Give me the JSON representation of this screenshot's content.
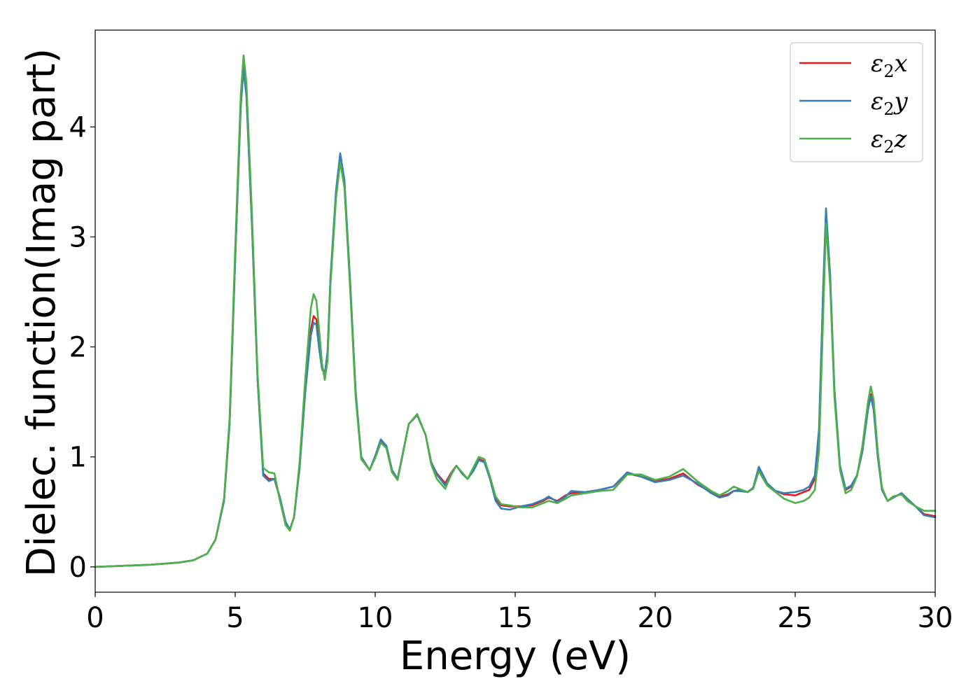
{
  "chart_data": {
    "type": "line",
    "xlabel": "Energy (eV)",
    "ylabel": "Dielec. function(Imag part)",
    "xlim": [
      0,
      30
    ],
    "ylim": [
      -0.23,
      4.88
    ],
    "xticks": [
      0,
      5,
      10,
      15,
      20,
      25,
      30
    ],
    "xtick_labels": [
      "0",
      "5",
      "10",
      "15",
      "20",
      "25",
      "30"
    ],
    "yticks": [
      0,
      1,
      2,
      3,
      4
    ],
    "ytick_labels": [
      "0",
      "1",
      "2",
      "3",
      "4"
    ],
    "grid": false,
    "legend_position": "top-right",
    "series": [
      {
        "name": "ε₂x",
        "legend": {
          "base": "ε",
          "sub": "2",
          "var": "x"
        },
        "color": "#e41a1c",
        "x": [
          0,
          1,
          2,
          3,
          3.5,
          4,
          4.3,
          4.6,
          4.8,
          5.0,
          5.2,
          5.3,
          5.4,
          5.6,
          5.8,
          6.0,
          6.2,
          6.4,
          6.6,
          6.8,
          6.95,
          7.1,
          7.3,
          7.5,
          7.7,
          7.8,
          7.9,
          8.0,
          8.1,
          8.2,
          8.3,
          8.4,
          8.6,
          8.75,
          8.9,
          9.1,
          9.3,
          9.5,
          9.8,
          10.0,
          10.2,
          10.4,
          10.6,
          10.8,
          11.0,
          11.2,
          11.5,
          11.8,
          12.0,
          12.2,
          12.5,
          12.7,
          12.9,
          13.1,
          13.3,
          13.5,
          13.7,
          13.9,
          14.1,
          14.3,
          14.5,
          14.8,
          15.2,
          15.6,
          16.0,
          16.2,
          16.5,
          16.8,
          17.0,
          17.5,
          18.0,
          18.5,
          19.0,
          19.5,
          20.0,
          20.5,
          21.0,
          21.5,
          22.0,
          22.3,
          22.6,
          22.8,
          23.0,
          23.3,
          23.5,
          23.7,
          24.0,
          24.3,
          24.6,
          25.0,
          25.3,
          25.5,
          25.7,
          25.85,
          26.0,
          26.1,
          26.25,
          26.4,
          26.6,
          26.8,
          27.0,
          27.2,
          27.4,
          27.6,
          27.7,
          27.8,
          27.95,
          28.1,
          28.3,
          28.5,
          28.8,
          29.0,
          29.3,
          29.6,
          30.0
        ],
        "y": [
          0.0,
          0.01,
          0.02,
          0.04,
          0.06,
          0.12,
          0.25,
          0.6,
          1.3,
          2.8,
          4.2,
          4.55,
          4.3,
          3.1,
          1.7,
          0.85,
          0.8,
          0.8,
          0.62,
          0.4,
          0.34,
          0.45,
          0.9,
          1.6,
          2.15,
          2.28,
          2.25,
          2.0,
          1.82,
          1.75,
          1.95,
          2.6,
          3.4,
          3.73,
          3.5,
          2.6,
          1.6,
          1.0,
          0.88,
          1.0,
          1.15,
          1.1,
          0.88,
          0.8,
          1.05,
          1.3,
          1.38,
          1.2,
          0.95,
          0.85,
          0.76,
          0.85,
          0.92,
          0.85,
          0.8,
          0.88,
          0.98,
          0.96,
          0.8,
          0.62,
          0.56,
          0.55,
          0.55,
          0.56,
          0.6,
          0.63,
          0.6,
          0.65,
          0.67,
          0.68,
          0.7,
          0.73,
          0.85,
          0.82,
          0.78,
          0.8,
          0.85,
          0.75,
          0.68,
          0.64,
          0.66,
          0.69,
          0.7,
          0.68,
          0.72,
          0.9,
          0.75,
          0.69,
          0.66,
          0.65,
          0.68,
          0.7,
          0.8,
          1.2,
          2.5,
          3.22,
          2.6,
          1.6,
          0.9,
          0.7,
          0.73,
          0.82,
          1.05,
          1.45,
          1.57,
          1.45,
          1.0,
          0.7,
          0.6,
          0.63,
          0.67,
          0.62,
          0.55,
          0.48,
          0.46
        ]
      },
      {
        "name": "ε₂y",
        "legend": {
          "base": "ε",
          "sub": "2",
          "var": "y"
        },
        "color": "#377eb8",
        "x": [
          0,
          1,
          2,
          3,
          3.5,
          4,
          4.3,
          4.6,
          4.8,
          5.0,
          5.2,
          5.3,
          5.4,
          5.6,
          5.8,
          6.0,
          6.2,
          6.4,
          6.6,
          6.8,
          6.95,
          7.1,
          7.3,
          7.5,
          7.7,
          7.8,
          7.9,
          8.0,
          8.1,
          8.2,
          8.3,
          8.4,
          8.6,
          8.75,
          8.9,
          9.1,
          9.3,
          9.5,
          9.8,
          10.0,
          10.2,
          10.4,
          10.6,
          10.8,
          11.0,
          11.2,
          11.5,
          11.8,
          12.0,
          12.2,
          12.5,
          12.7,
          12.9,
          13.1,
          13.3,
          13.5,
          13.7,
          13.9,
          14.1,
          14.3,
          14.5,
          14.8,
          15.2,
          15.6,
          16.0,
          16.2,
          16.5,
          16.8,
          17.0,
          17.5,
          18.0,
          18.5,
          19.0,
          19.5,
          20.0,
          20.5,
          21.0,
          21.5,
          22.0,
          22.3,
          22.6,
          22.8,
          23.0,
          23.3,
          23.5,
          23.7,
          24.0,
          24.3,
          24.6,
          25.0,
          25.3,
          25.5,
          25.7,
          25.85,
          26.0,
          26.1,
          26.25,
          26.4,
          26.6,
          26.8,
          27.0,
          27.2,
          27.4,
          27.6,
          27.7,
          27.8,
          27.95,
          28.1,
          28.3,
          28.5,
          28.8,
          29.0,
          29.3,
          29.6,
          30.0
        ],
        "y": [
          0.0,
          0.01,
          0.02,
          0.04,
          0.06,
          0.12,
          0.25,
          0.6,
          1.3,
          2.8,
          4.2,
          4.52,
          4.28,
          3.1,
          1.7,
          0.83,
          0.78,
          0.8,
          0.63,
          0.41,
          0.34,
          0.45,
          0.9,
          1.58,
          2.1,
          2.22,
          2.2,
          1.98,
          1.8,
          1.75,
          1.96,
          2.62,
          3.42,
          3.76,
          3.52,
          2.62,
          1.6,
          1.0,
          0.88,
          1.01,
          1.16,
          1.1,
          0.88,
          0.8,
          1.05,
          1.3,
          1.38,
          1.2,
          0.95,
          0.84,
          0.74,
          0.84,
          0.92,
          0.85,
          0.8,
          0.87,
          0.97,
          0.95,
          0.8,
          0.6,
          0.53,
          0.52,
          0.55,
          0.57,
          0.61,
          0.64,
          0.59,
          0.64,
          0.69,
          0.68,
          0.7,
          0.73,
          0.86,
          0.82,
          0.77,
          0.79,
          0.83,
          0.76,
          0.67,
          0.63,
          0.65,
          0.69,
          0.69,
          0.68,
          0.72,
          0.91,
          0.76,
          0.69,
          0.67,
          0.68,
          0.7,
          0.73,
          0.83,
          1.25,
          2.55,
          3.26,
          2.65,
          1.62,
          0.92,
          0.71,
          0.74,
          0.83,
          1.05,
          1.43,
          1.55,
          1.43,
          1.0,
          0.7,
          0.6,
          0.63,
          0.67,
          0.62,
          0.55,
          0.47,
          0.45
        ]
      },
      {
        "name": "ε₂z",
        "legend": {
          "base": "ε",
          "sub": "2",
          "var": "z"
        },
        "color": "#4daf4a",
        "x": [
          0,
          1,
          2,
          3,
          3.5,
          4,
          4.3,
          4.6,
          4.8,
          5.0,
          5.2,
          5.3,
          5.4,
          5.6,
          5.8,
          6.0,
          6.2,
          6.4,
          6.6,
          6.8,
          6.95,
          7.1,
          7.3,
          7.5,
          7.7,
          7.8,
          7.9,
          8.0,
          8.1,
          8.2,
          8.3,
          8.4,
          8.6,
          8.75,
          8.9,
          9.1,
          9.3,
          9.5,
          9.8,
          10.0,
          10.2,
          10.4,
          10.6,
          10.8,
          11.0,
          11.2,
          11.5,
          11.8,
          12.0,
          12.2,
          12.5,
          12.7,
          12.9,
          13.1,
          13.3,
          13.5,
          13.7,
          13.9,
          14.1,
          14.3,
          14.5,
          14.8,
          15.2,
          15.6,
          16.0,
          16.2,
          16.5,
          16.8,
          17.0,
          17.5,
          18.0,
          18.5,
          19.0,
          19.5,
          20.0,
          20.5,
          21.0,
          21.5,
          22.0,
          22.3,
          22.6,
          22.8,
          23.0,
          23.3,
          23.5,
          23.7,
          24.0,
          24.3,
          24.6,
          25.0,
          25.3,
          25.5,
          25.7,
          25.85,
          26.0,
          26.1,
          26.25,
          26.4,
          26.6,
          26.8,
          27.0,
          27.2,
          27.4,
          27.6,
          27.7,
          27.8,
          27.95,
          28.1,
          28.3,
          28.5,
          28.8,
          29.0,
          29.3,
          29.6,
          30.0
        ],
        "y": [
          0.0,
          0.01,
          0.02,
          0.04,
          0.06,
          0.12,
          0.25,
          0.62,
          1.35,
          2.9,
          4.3,
          4.65,
          4.4,
          3.2,
          1.75,
          0.9,
          0.86,
          0.85,
          0.6,
          0.38,
          0.33,
          0.45,
          0.95,
          1.7,
          2.35,
          2.48,
          2.42,
          2.15,
          1.85,
          1.7,
          1.88,
          2.55,
          3.35,
          3.68,
          3.45,
          2.55,
          1.55,
          0.98,
          0.88,
          0.99,
          1.13,
          1.08,
          0.86,
          0.79,
          1.04,
          1.3,
          1.39,
          1.2,
          0.93,
          0.8,
          0.71,
          0.83,
          0.92,
          0.86,
          0.8,
          0.9,
          1.0,
          0.98,
          0.82,
          0.64,
          0.57,
          0.56,
          0.54,
          0.54,
          0.58,
          0.6,
          0.58,
          0.62,
          0.65,
          0.67,
          0.69,
          0.7,
          0.84,
          0.84,
          0.79,
          0.82,
          0.89,
          0.78,
          0.69,
          0.65,
          0.69,
          0.73,
          0.71,
          0.68,
          0.71,
          0.87,
          0.74,
          0.68,
          0.62,
          0.58,
          0.6,
          0.63,
          0.7,
          1.05,
          2.3,
          3.12,
          2.55,
          1.55,
          0.88,
          0.67,
          0.7,
          0.82,
          1.1,
          1.5,
          1.64,
          1.52,
          1.05,
          0.72,
          0.6,
          0.64,
          0.66,
          0.6,
          0.55,
          0.51,
          0.51
        ]
      }
    ]
  }
}
